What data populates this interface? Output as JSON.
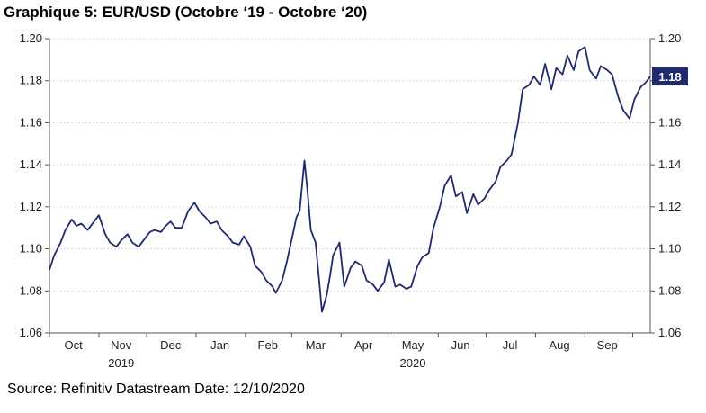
{
  "header": {
    "title": "Graphique 5: EUR/USD (Octobre ‘19 - Octobre ‘20)"
  },
  "footer": {
    "source": "Source: Refinitiv Datastream Date: 12/10/2020"
  },
  "colors": {
    "line": "#1f2a6e",
    "last_badge_bg": "#1f2a6e",
    "grid": "#d9d9d9",
    "axis": "#555555"
  },
  "chart_data": {
    "type": "line",
    "title": "",
    "xlabel": "",
    "ylabel": "",
    "ylim": [
      1.06,
      1.2
    ],
    "yticks": [
      "1.06",
      "1.08",
      "1.10",
      "1.12",
      "1.14",
      "1.16",
      "1.18",
      "1.20"
    ],
    "grid": true,
    "x_start": "2019-10-01",
    "x_end": "2020-10-12",
    "month_labels": [
      {
        "label": "Oct",
        "date": "2019-10-16"
      },
      {
        "label": "Nov",
        "date": "2019-11-15"
      },
      {
        "label": "Dec",
        "date": "2019-12-16"
      },
      {
        "label": "Jan",
        "date": "2020-01-16"
      },
      {
        "label": "Feb",
        "date": "2020-02-15"
      },
      {
        "label": "Mar",
        "date": "2020-03-16"
      },
      {
        "label": "Apr",
        "date": "2020-04-15"
      },
      {
        "label": "May",
        "date": "2020-05-16"
      },
      {
        "label": "Jun",
        "date": "2020-06-15"
      },
      {
        "label": "Jul",
        "date": "2020-07-16"
      },
      {
        "label": "Aug",
        "date": "2020-08-16"
      },
      {
        "label": "Sep",
        "date": "2020-09-15"
      }
    ],
    "year_labels": [
      {
        "label": "2019",
        "date": "2019-11-15"
      },
      {
        "label": "2020",
        "date": "2020-05-16"
      }
    ],
    "last_value_label": "1.18",
    "series": [
      {
        "dates": [
          "2019-10-01",
          "2019-10-04",
          "2019-10-08",
          "2019-10-11",
          "2019-10-15",
          "2019-10-18",
          "2019-10-21",
          "2019-10-25",
          "2019-10-29",
          "2019-11-01",
          "2019-11-05",
          "2019-11-08",
          "2019-11-12",
          "2019-11-15",
          "2019-11-19",
          "2019-11-22",
          "2019-11-26",
          "2019-11-29",
          "2019-12-03",
          "2019-12-06",
          "2019-12-10",
          "2019-12-13",
          "2019-12-16",
          "2019-12-19",
          "2019-12-23",
          "2019-12-27",
          "2019-12-31",
          "2020-01-03",
          "2020-01-07",
          "2020-01-10",
          "2020-01-14",
          "2020-01-17",
          "2020-01-21",
          "2020-01-24",
          "2020-01-28",
          "2020-01-31",
          "2020-02-04",
          "2020-02-07",
          "2020-02-11",
          "2020-02-14",
          "2020-02-18",
          "2020-02-20",
          "2020-02-24",
          "2020-02-27",
          "2020-03-02",
          "2020-03-04",
          "2020-03-06",
          "2020-03-09",
          "2020-03-11",
          "2020-03-13",
          "2020-03-16",
          "2020-03-18",
          "2020-03-20",
          "2020-03-23",
          "2020-03-25",
          "2020-03-27",
          "2020-03-31",
          "2020-04-03",
          "2020-04-07",
          "2020-04-10",
          "2020-04-14",
          "2020-04-17",
          "2020-04-21",
          "2020-04-24",
          "2020-04-28",
          "2020-05-01",
          "2020-05-05",
          "2020-05-08",
          "2020-05-12",
          "2020-05-15",
          "2020-05-19",
          "2020-05-22",
          "2020-05-26",
          "2020-05-29",
          "2020-06-02",
          "2020-06-05",
          "2020-06-09",
          "2020-06-12",
          "2020-06-16",
          "2020-06-19",
          "2020-06-23",
          "2020-06-26",
          "2020-06-30",
          "2020-07-03",
          "2020-07-07",
          "2020-07-10",
          "2020-07-14",
          "2020-07-17",
          "2020-07-21",
          "2020-07-24",
          "2020-07-28",
          "2020-07-31",
          "2020-08-04",
          "2020-08-07",
          "2020-08-11",
          "2020-08-14",
          "2020-08-18",
          "2020-08-21",
          "2020-08-25",
          "2020-08-28",
          "2020-09-01",
          "2020-09-04",
          "2020-09-08",
          "2020-09-11",
          "2020-09-15",
          "2020-09-18",
          "2020-09-22",
          "2020-09-25",
          "2020-09-29",
          "2020-10-02",
          "2020-10-06",
          "2020-10-09",
          "2020-10-12"
        ],
        "values": [
          1.09,
          1.097,
          1.103,
          1.109,
          1.114,
          1.111,
          1.112,
          1.109,
          1.113,
          1.116,
          1.107,
          1.103,
          1.101,
          1.104,
          1.107,
          1.103,
          1.101,
          1.104,
          1.108,
          1.109,
          1.108,
          1.111,
          1.113,
          1.11,
          1.11,
          1.118,
          1.122,
          1.118,
          1.115,
          1.112,
          1.113,
          1.109,
          1.106,
          1.103,
          1.102,
          1.106,
          1.101,
          1.092,
          1.089,
          1.085,
          1.082,
          1.079,
          1.085,
          1.094,
          1.108,
          1.115,
          1.118,
          1.142,
          1.127,
          1.109,
          1.103,
          1.087,
          1.07,
          1.078,
          1.087,
          1.097,
          1.103,
          1.082,
          1.091,
          1.094,
          1.092,
          1.085,
          1.083,
          1.08,
          1.084,
          1.095,
          1.082,
          1.083,
          1.081,
          1.082,
          1.092,
          1.096,
          1.098,
          1.11,
          1.12,
          1.13,
          1.135,
          1.125,
          1.127,
          1.117,
          1.126,
          1.121,
          1.124,
          1.128,
          1.132,
          1.139,
          1.142,
          1.145,
          1.16,
          1.176,
          1.178,
          1.182,
          1.178,
          1.188,
          1.176,
          1.186,
          1.183,
          1.192,
          1.185,
          1.194,
          1.196,
          1.185,
          1.181,
          1.187,
          1.185,
          1.183,
          1.172,
          1.166,
          1.162,
          1.171,
          1.177,
          1.179,
          1.182
        ]
      }
    ]
  }
}
